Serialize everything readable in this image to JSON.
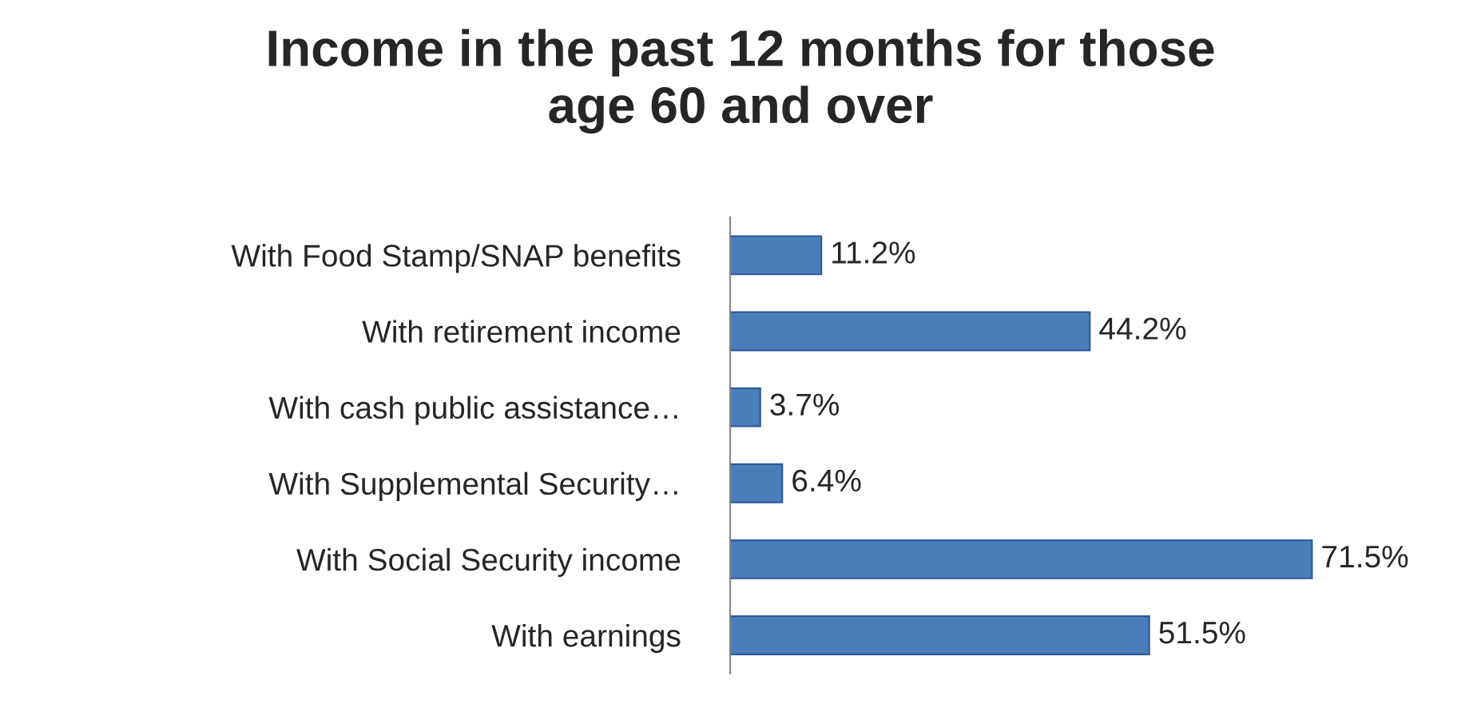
{
  "chart_data": {
    "type": "bar",
    "orientation": "horizontal",
    "title": "Income in the past 12 months for those\nage 60 and over",
    "categories": [
      "With Food Stamp/SNAP benefits",
      "With retirement income",
      "With cash public assistance…",
      "With Supplemental Security…",
      "With Social Security income",
      "With earnings"
    ],
    "values": [
      11.2,
      44.2,
      3.7,
      6.4,
      71.5,
      51.5
    ],
    "value_labels": [
      "11.2%",
      "44.2%",
      "3.7%",
      "6.4%",
      "71.5%",
      "51.5%"
    ],
    "color": "#4a7ebb",
    "tick_labels": "y",
    "grid": false,
    "legend": false
  }
}
